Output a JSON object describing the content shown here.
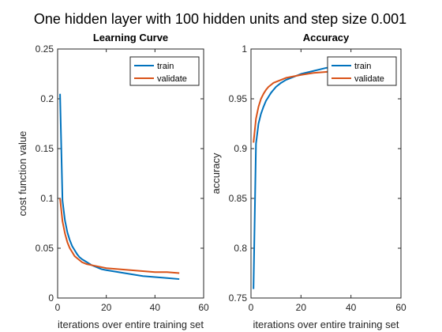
{
  "figure": {
    "suptitle": "One hidden layer with 100 hidden units and step size 0.001"
  },
  "chart_data": [
    {
      "type": "line",
      "title": "Learning Curve",
      "xlabel": "iterations over entire training set",
      "ylabel": "cost function value",
      "xlim": [
        0,
        60
      ],
      "ylim": [
        0,
        0.25
      ],
      "xticks": [
        0,
        20,
        40,
        60
      ],
      "yticks": [
        0,
        0.05,
        0.1,
        0.15,
        0.2,
        0.25
      ],
      "xtick_labels": [
        "0",
        "20",
        "40",
        "60"
      ],
      "ytick_labels": [
        "0",
        "0.05",
        "0.1",
        "0.15",
        "0.2",
        "0.25"
      ],
      "legend": "top-right",
      "series": [
        {
          "name": "train",
          "color": "#0072BD",
          "x": [
            1,
            2,
            3,
            4,
            5,
            6,
            7,
            8,
            9,
            10,
            12,
            14,
            16,
            18,
            20,
            25,
            30,
            35,
            40,
            45,
            50
          ],
          "y": [
            0.205,
            0.098,
            0.078,
            0.066,
            0.058,
            0.052,
            0.048,
            0.044,
            0.041,
            0.039,
            0.036,
            0.033,
            0.031,
            0.029,
            0.028,
            0.026,
            0.024,
            0.022,
            0.021,
            0.02,
            0.019
          ]
        },
        {
          "name": "validate",
          "color": "#D95319",
          "x": [
            1,
            2,
            3,
            4,
            5,
            6,
            7,
            8,
            9,
            10,
            12,
            14,
            16,
            18,
            20,
            25,
            30,
            35,
            40,
            45,
            50
          ],
          "y": [
            0.1,
            0.077,
            0.065,
            0.056,
            0.05,
            0.046,
            0.042,
            0.04,
            0.038,
            0.036,
            0.034,
            0.033,
            0.032,
            0.031,
            0.03,
            0.029,
            0.028,
            0.027,
            0.026,
            0.026,
            0.025
          ]
        }
      ]
    },
    {
      "type": "line",
      "title": "Accuracy",
      "xlabel": "iterations over entire training set",
      "ylabel": "accuracy",
      "xlim": [
        0,
        60
      ],
      "ylim": [
        0.75,
        1
      ],
      "xticks": [
        0,
        20,
        40,
        60
      ],
      "yticks": [
        0.75,
        0.8,
        0.85,
        0.9,
        0.95,
        1
      ],
      "xtick_labels": [
        "0",
        "20",
        "40",
        "60"
      ],
      "ytick_labels": [
        "0.75",
        "0.8",
        "0.85",
        "0.9",
        "0.95",
        "1"
      ],
      "legend": "top-right",
      "series": [
        {
          "name": "train",
          "color": "#0072BD",
          "x": [
            1,
            2,
            3,
            4,
            5,
            6,
            7,
            8,
            9,
            10,
            12,
            14,
            16,
            18,
            20,
            25,
            30,
            35,
            40,
            45,
            50
          ],
          "y": [
            0.759,
            0.905,
            0.925,
            0.935,
            0.942,
            0.948,
            0.952,
            0.956,
            0.959,
            0.962,
            0.966,
            0.969,
            0.971,
            0.973,
            0.975,
            0.978,
            0.981,
            0.983,
            0.985,
            0.986,
            0.987
          ]
        },
        {
          "name": "validate",
          "color": "#D95319",
          "x": [
            1,
            2,
            3,
            4,
            5,
            6,
            7,
            8,
            9,
            10,
            12,
            14,
            16,
            18,
            20,
            25,
            30,
            35,
            40,
            45,
            50
          ],
          "y": [
            0.906,
            0.93,
            0.942,
            0.95,
            0.955,
            0.959,
            0.962,
            0.964,
            0.966,
            0.967,
            0.969,
            0.971,
            0.972,
            0.973,
            0.974,
            0.976,
            0.977,
            0.978,
            0.979,
            0.979,
            0.98
          ]
        }
      ]
    }
  ]
}
